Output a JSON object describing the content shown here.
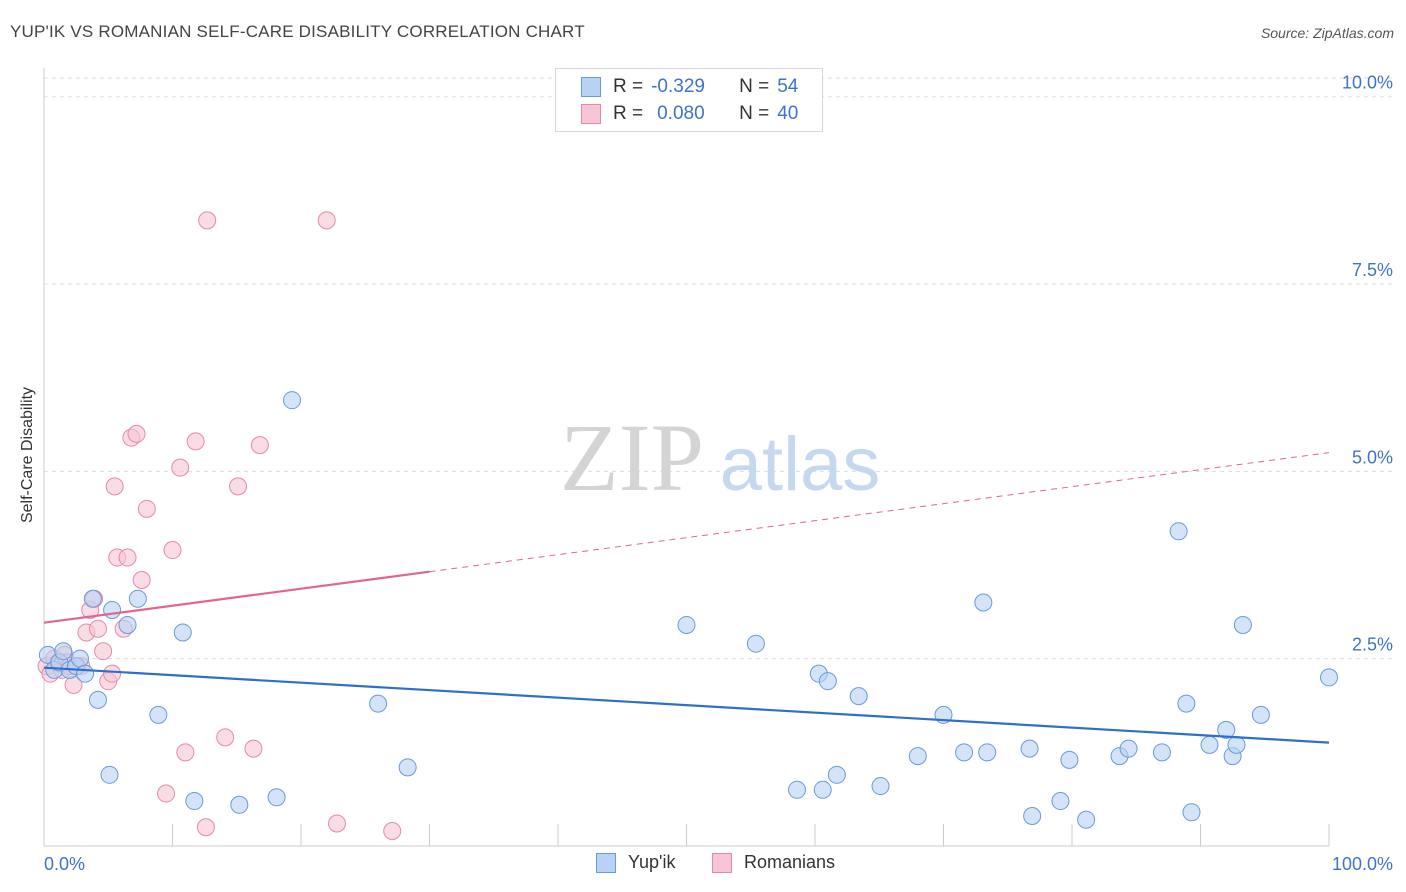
{
  "header": {
    "title": "YUP'IK VS ROMANIAN SELF-CARE DISABILITY CORRELATION CHART",
    "source": "Source: ZipAtlas.com"
  },
  "legend": {
    "rows": [
      {
        "r_label": "R =",
        "r_value": "-0.329",
        "n_label": "N =",
        "n_value": "54"
      },
      {
        "r_label": "R =",
        "r_value": "0.080",
        "n_label": "N =",
        "n_value": "40"
      }
    ]
  },
  "watermark": {
    "zip": "ZIP",
    "atlas": "atlas"
  },
  "colors": {
    "yupik_fill": "#b8d2f3",
    "yupik_stroke": "#6a9ad8",
    "yupik_line": "#2f6fcc",
    "romanian_fill": "#f7c4d4",
    "romanian_stroke": "#e48aa8",
    "romanian_line": "#e0668f",
    "tick_label": "#3f73c9",
    "grid": "#dddddd"
  },
  "chart_data": {
    "type": "scatter",
    "title": "YUP'IK VS ROMANIAN SELF-CARE DISABILITY CORRELATION CHART",
    "xlabel": "",
    "ylabel": "Self-Care Disability",
    "xlim": [
      0,
      100
    ],
    "ylim": [
      0,
      10.25
    ],
    "x_tick_labels": [
      {
        "value": 0,
        "label": "0.0%"
      },
      {
        "value": 100,
        "label": "100.0%"
      }
    ],
    "y_ticks": [
      {
        "value": 2.5,
        "label": "2.5%"
      },
      {
        "value": 5.0,
        "label": "5.0%"
      },
      {
        "value": 7.5,
        "label": "7.5%"
      },
      {
        "value": 10.0,
        "label": "10.0%"
      }
    ],
    "series": [
      {
        "name": "Yup'ik",
        "r": -0.329,
        "n": 54,
        "trend": {
          "x0": 0,
          "y0": 2.38,
          "x1": 100,
          "y1": 1.38
        },
        "points": [
          [
            0.3,
            2.55
          ],
          [
            0.8,
            2.35
          ],
          [
            1.2,
            2.45
          ],
          [
            1.5,
            2.6
          ],
          [
            2.0,
            2.35
          ],
          [
            2.5,
            2.4
          ],
          [
            2.8,
            2.5
          ],
          [
            3.2,
            2.3
          ],
          [
            3.8,
            3.3
          ],
          [
            4.2,
            1.95
          ],
          [
            5.1,
            0.95
          ],
          [
            5.3,
            3.15
          ],
          [
            6.5,
            2.95
          ],
          [
            7.3,
            3.3
          ],
          [
            8.9,
            1.75
          ],
          [
            10.8,
            2.85
          ],
          [
            11.7,
            0.6
          ],
          [
            15.2,
            0.55
          ],
          [
            18.1,
            0.65
          ],
          [
            19.3,
            5.95
          ],
          [
            26.0,
            1.9
          ],
          [
            28.3,
            1.05
          ],
          [
            50.0,
            2.95
          ],
          [
            55.4,
            2.7
          ],
          [
            58.6,
            0.75
          ],
          [
            60.3,
            2.3
          ],
          [
            60.6,
            0.75
          ],
          [
            61.0,
            2.2
          ],
          [
            61.7,
            0.95
          ],
          [
            63.4,
            2.0
          ],
          [
            65.1,
            0.8
          ],
          [
            68.0,
            1.2
          ],
          [
            70.0,
            1.75
          ],
          [
            71.6,
            1.25
          ],
          [
            73.1,
            3.25
          ],
          [
            73.4,
            1.25
          ],
          [
            76.7,
            1.3
          ],
          [
            76.9,
            0.4
          ],
          [
            79.1,
            0.6
          ],
          [
            79.8,
            1.15
          ],
          [
            81.1,
            0.35
          ],
          [
            83.7,
            1.2
          ],
          [
            84.4,
            1.3
          ],
          [
            87.0,
            1.25
          ],
          [
            88.3,
            4.2
          ],
          [
            88.9,
            1.9
          ],
          [
            89.3,
            0.45
          ],
          [
            90.7,
            1.35
          ],
          [
            92.0,
            1.55
          ],
          [
            92.5,
            1.2
          ],
          [
            92.8,
            1.35
          ],
          [
            93.3,
            2.95
          ],
          [
            94.7,
            1.75
          ],
          [
            100.0,
            2.25
          ]
        ]
      },
      {
        "name": "Romanians",
        "r": 0.08,
        "n": 40,
        "trend": {
          "x0": 0,
          "y0": 2.98,
          "x1": 100,
          "y1": 5.25,
          "solid_until": 30
        },
        "points": [
          [
            0.2,
            2.4
          ],
          [
            0.5,
            2.3
          ],
          [
            0.8,
            2.5
          ],
          [
            1.1,
            2.45
          ],
          [
            1.4,
            2.35
          ],
          [
            1.6,
            2.55
          ],
          [
            1.8,
            2.45
          ],
          [
            2.0,
            2.4
          ],
          [
            2.3,
            2.15
          ],
          [
            2.6,
            2.4
          ],
          [
            2.9,
            2.4
          ],
          [
            3.3,
            2.85
          ],
          [
            3.6,
            3.15
          ],
          [
            3.9,
            3.3
          ],
          [
            4.2,
            2.9
          ],
          [
            4.6,
            2.6
          ],
          [
            5.0,
            2.2
          ],
          [
            5.3,
            2.3
          ],
          [
            5.5,
            4.8
          ],
          [
            5.7,
            3.85
          ],
          [
            6.2,
            2.9
          ],
          [
            6.5,
            3.85
          ],
          [
            6.8,
            5.45
          ],
          [
            7.2,
            5.5
          ],
          [
            7.6,
            3.55
          ],
          [
            8.0,
            4.5
          ],
          [
            9.5,
            0.7
          ],
          [
            10.0,
            3.95
          ],
          [
            10.6,
            5.05
          ],
          [
            11.0,
            1.25
          ],
          [
            11.8,
            5.4
          ],
          [
            12.7,
            8.35
          ],
          [
            14.1,
            1.45
          ],
          [
            15.1,
            4.8
          ],
          [
            16.3,
            1.3
          ],
          [
            16.8,
            5.35
          ],
          [
            22.0,
            8.35
          ],
          [
            22.8,
            0.3
          ],
          [
            27.1,
            0.2
          ],
          [
            12.6,
            0.25
          ]
        ]
      }
    ]
  },
  "bottom_legend": {
    "items": [
      "Yup'ik",
      "Romanians"
    ]
  }
}
